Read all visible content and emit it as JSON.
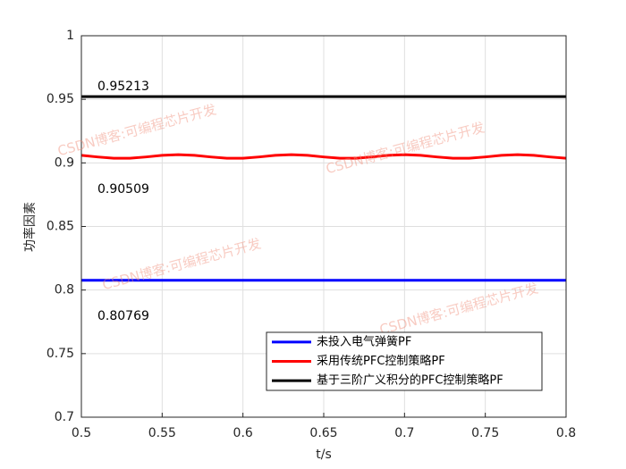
{
  "chart_data": {
    "type": "line",
    "xlabel": "t/s",
    "ylabel": "功率因素",
    "x": [
      0.5,
      0.51,
      0.52,
      0.53,
      0.54,
      0.55,
      0.56,
      0.57,
      0.58,
      0.59,
      0.6,
      0.61,
      0.62,
      0.63,
      0.64,
      0.65,
      0.66,
      0.67,
      0.68,
      0.69,
      0.7,
      0.71,
      0.72,
      0.73,
      0.74,
      0.75,
      0.76,
      0.77,
      0.78,
      0.79,
      0.8
    ],
    "series": [
      {
        "name": "未投入电气弹簧PF",
        "color": "#0000ff",
        "values": [
          0.80769,
          0.80769,
          0.80769,
          0.80769,
          0.80769,
          0.80769,
          0.80769,
          0.80769,
          0.80769,
          0.80769,
          0.80769,
          0.80769,
          0.80769,
          0.80769,
          0.80769,
          0.80769,
          0.80769,
          0.80769,
          0.80769,
          0.80769,
          0.80769,
          0.80769,
          0.80769,
          0.80769,
          0.80769,
          0.80769,
          0.80769,
          0.80769,
          0.80769,
          0.80769,
          0.80769
        ]
      },
      {
        "name": "采用传统PFC控制策略PF",
        "color": "#ff0000",
        "values": [
          0.90594,
          0.90467,
          0.90365,
          0.90365,
          0.90467,
          0.90593,
          0.9065,
          0.90593,
          0.90467,
          0.90365,
          0.90365,
          0.90467,
          0.90594,
          0.9065,
          0.90593,
          0.90467,
          0.90365,
          0.90365,
          0.90467,
          0.90593,
          0.9065,
          0.90593,
          0.90467,
          0.90365,
          0.90365,
          0.90467,
          0.90593,
          0.9065,
          0.90593,
          0.90467,
          0.90365
        ]
      },
      {
        "name": "基于三阶广义积分的PFC控制策略PF",
        "color": "#000000",
        "values": [
          0.9521,
          0.9521,
          0.9521,
          0.9521,
          0.9521,
          0.9521,
          0.9521,
          0.9521,
          0.9521,
          0.9521,
          0.9521,
          0.9521,
          0.9521,
          0.9521,
          0.9521,
          0.9521,
          0.9521,
          0.9521,
          0.9521,
          0.9521,
          0.9521,
          0.9521,
          0.9521,
          0.9521,
          0.9521,
          0.9521,
          0.9521,
          0.9521,
          0.9521,
          0.9521,
          0.9521
        ]
      }
    ],
    "annotations": [
      "0.95213",
      "0.90509",
      "0.80769"
    ],
    "watermarks": [
      "CSDN博客:可编程芯片开发",
      "CSDN博客:可编程芯片开发",
      "CSDN博客:可编程芯片开发",
      "CSDN博客:可编程芯片开发"
    ],
    "xlim": [
      0.5,
      0.8
    ],
    "xticks": [
      0.5,
      0.55,
      0.6,
      0.65,
      0.7,
      0.75,
      0.8
    ],
    "ylim": [
      0.7,
      1
    ],
    "yticks": [
      0.7,
      0.75,
      0.8,
      0.85,
      0.9,
      0.95,
      1
    ],
    "grid": true,
    "legend": "lower right"
  }
}
